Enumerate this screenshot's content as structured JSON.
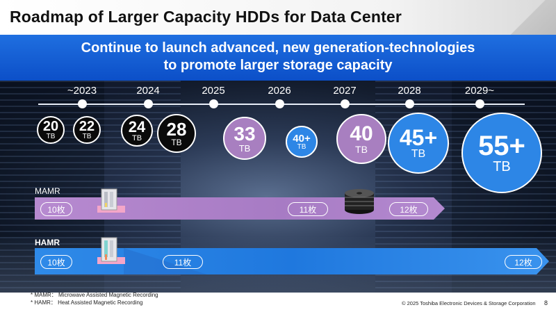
{
  "title": "Roadmap of Larger Capacity HDDs for Data Center",
  "banner": {
    "line1": "Continue to launch advanced, new generation-technologies",
    "line2": "to promote larger storage capacity"
  },
  "timeline": {
    "years": [
      "~2023",
      "2024",
      "2025",
      "2026",
      "2027",
      "2028",
      "2029~"
    ]
  },
  "capacities": [
    {
      "value": "20",
      "unit": "TB",
      "color": "#0a0a0a"
    },
    {
      "value": "22",
      "unit": "TB",
      "color": "#0a0a0a"
    },
    {
      "value": "24",
      "unit": "TB",
      "color": "#0a0a0a"
    },
    {
      "value": "28",
      "unit": "TB",
      "color": "#0a0a0a"
    },
    {
      "value": "33",
      "unit": "TB",
      "color": "#a87fc0"
    },
    {
      "value": "40+",
      "unit": "TB",
      "color": "#2d86e6"
    },
    {
      "value": "40",
      "unit": "TB",
      "color": "#a87fc0"
    },
    {
      "value": "45+",
      "unit": "TB",
      "color": "#2d86e6"
    },
    {
      "value": "55+",
      "unit": "TB",
      "color": "#2d86e6"
    }
  ],
  "tracks": {
    "mamr": {
      "label": "MAMR",
      "color": "#a87fc0",
      "platters": [
        "10枚",
        "11枚",
        "12枚"
      ]
    },
    "hamr": {
      "label": "HAMR",
      "color": "#2d86e6",
      "platters": [
        "10枚",
        "11枚",
        "12枚"
      ]
    }
  },
  "footnotes": {
    "mamr": "* MAMR： Microwave Assisted Magnetic Recording",
    "hamr": "* HAMR： Heat Assisted Magnetic Recording"
  },
  "copyright": "© 2025 Toshiba Electronic Devices & Storage Corporation",
  "page_number": "8"
}
